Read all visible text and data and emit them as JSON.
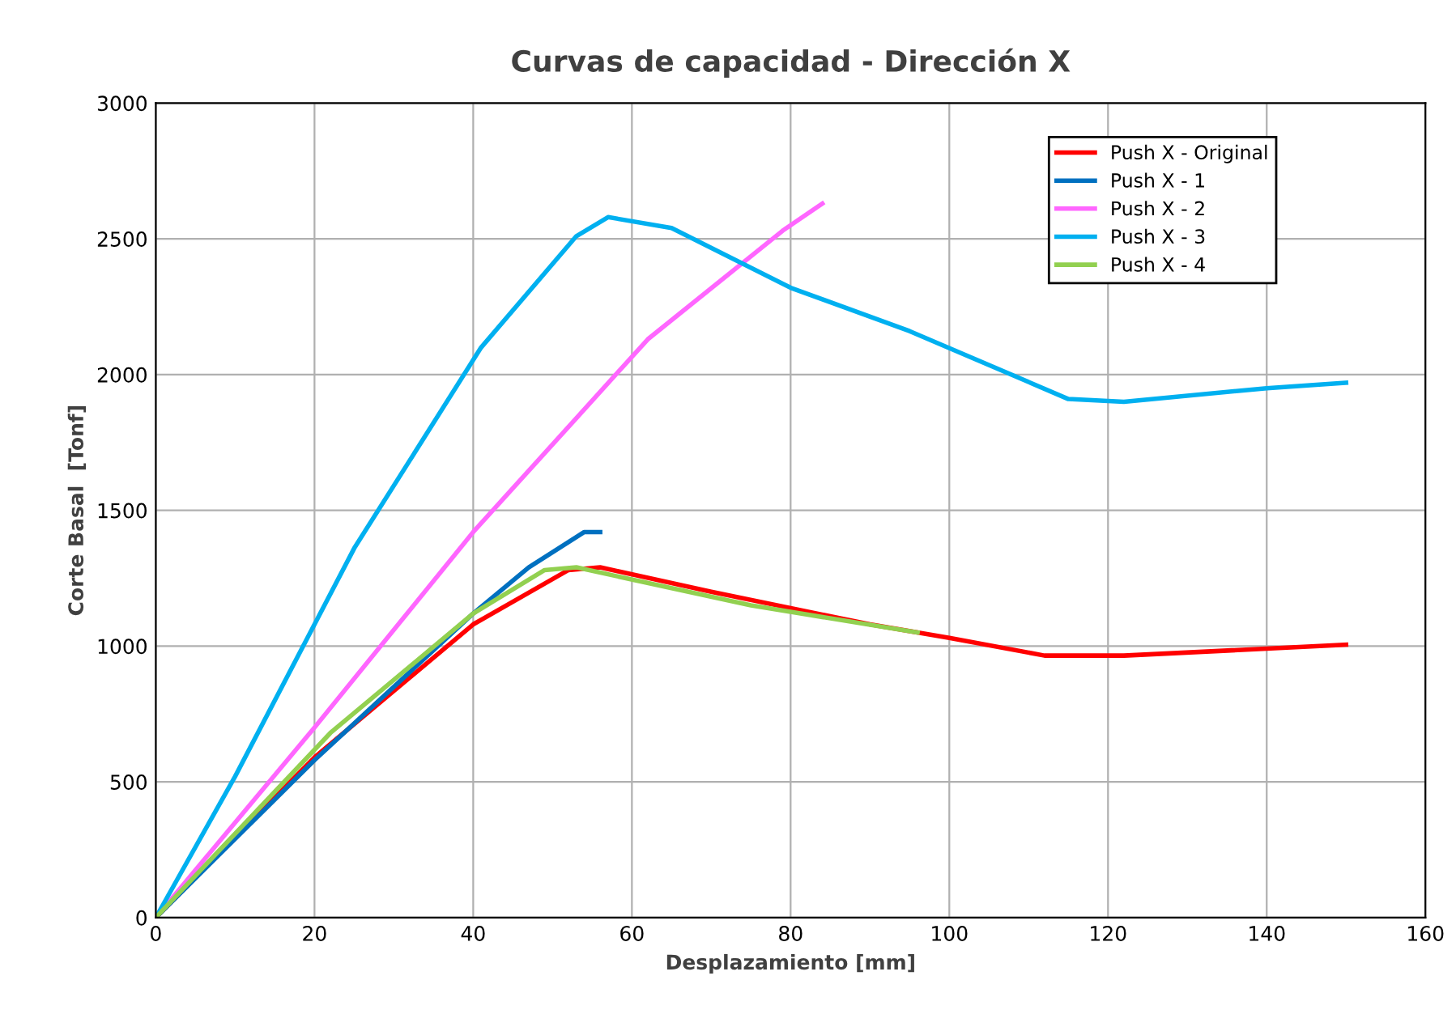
{
  "chart_data": {
    "type": "line",
    "title": "Curvas de capacidad - Dirección X",
    "xlabel": "Desplazamiento [mm]",
    "ylabel": "Corte Basal  [Tonf]",
    "xlim": [
      0,
      160
    ],
    "xticks": [
      0,
      20,
      40,
      60,
      80,
      100,
      120,
      140,
      160
    ],
    "ylim": [
      0,
      3000
    ],
    "yticks": [
      0,
      500,
      1000,
      1500,
      2000,
      2500,
      3000
    ],
    "grid": true,
    "legend": "top right",
    "marker": "none",
    "line_style": "solid",
    "series": [
      {
        "name": "Push X - Original",
        "color": "#ff0000",
        "x": [
          0,
          20,
          40,
          52,
          56,
          70,
          90,
          100,
          112,
          122,
          150
        ],
        "values": [
          0,
          590,
          1080,
          1280,
          1290,
          1200,
          1080,
          1030,
          965,
          965,
          1005
        ]
      },
      {
        "name": "Push X - 1",
        "color": "#0070c0",
        "x": [
          0,
          20,
          40,
          47,
          54,
          56
        ],
        "values": [
          0,
          580,
          1120,
          1290,
          1420,
          1420
        ]
      },
      {
        "name": "Push X - 2",
        "color": "#ff66ff",
        "x": [
          0,
          20,
          40,
          62,
          79,
          84
        ],
        "values": [
          0,
          700,
          1420,
          2130,
          2530,
          2630
        ]
      },
      {
        "name": "Push X - 3",
        "color": "#00b0f0",
        "x": [
          0,
          10,
          25,
          41,
          53,
          57,
          65,
          80,
          95,
          115,
          122,
          140,
          150
        ],
        "values": [
          0,
          520,
          1360,
          2100,
          2510,
          2580,
          2540,
          2320,
          2160,
          1910,
          1900,
          1950,
          1970
        ]
      },
      {
        "name": "Push X - 4",
        "color": "#92d050",
        "x": [
          0,
          22,
          40,
          49,
          53,
          75,
          96
        ],
        "values": [
          0,
          680,
          1120,
          1280,
          1290,
          1150,
          1050
        ]
      }
    ]
  }
}
